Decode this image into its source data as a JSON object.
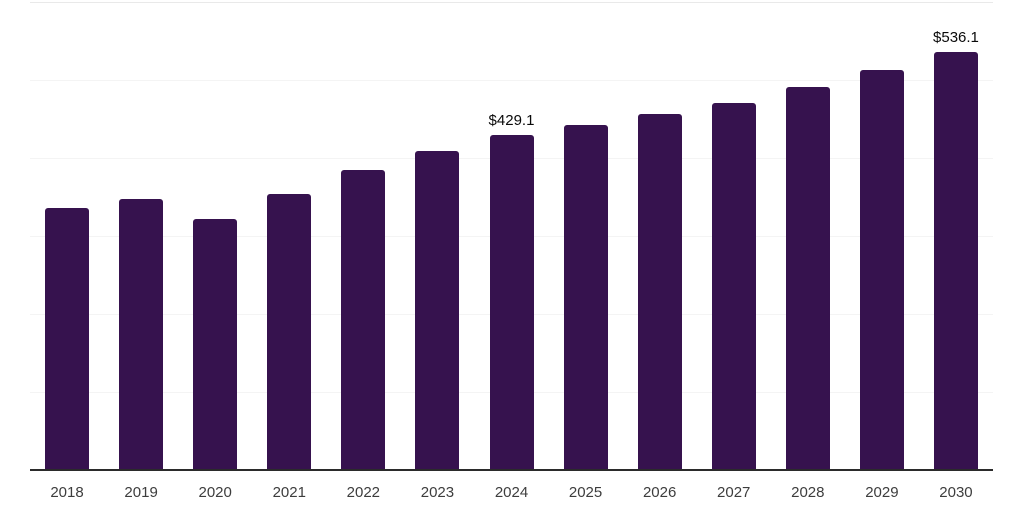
{
  "chart_data": {
    "type": "bar",
    "title": "",
    "xlabel": "",
    "ylabel": "",
    "categories": [
      "2018",
      "2019",
      "2020",
      "2021",
      "2022",
      "2023",
      "2024",
      "2025",
      "2026",
      "2027",
      "2028",
      "2029",
      "2030"
    ],
    "values": [
      336,
      348,
      322,
      354,
      385,
      409,
      429.1,
      442,
      456,
      471,
      491,
      513,
      536.1
    ],
    "data_labels": {
      "2024": "$429.1",
      "2030": "$536.1"
    },
    "ylim": [
      0,
      600
    ],
    "gridline_values": [
      100,
      200,
      300,
      400,
      500,
      600
    ],
    "grid": "horizontal-only, no y tick labels",
    "legend_position": "none",
    "bar_color": "#36124e",
    "axis_line_color": "#2b2b2b",
    "gridline_color": "#f4f4f4",
    "x_label_color": "#3d3d3d",
    "value_label_color": "#0a0a0a"
  }
}
